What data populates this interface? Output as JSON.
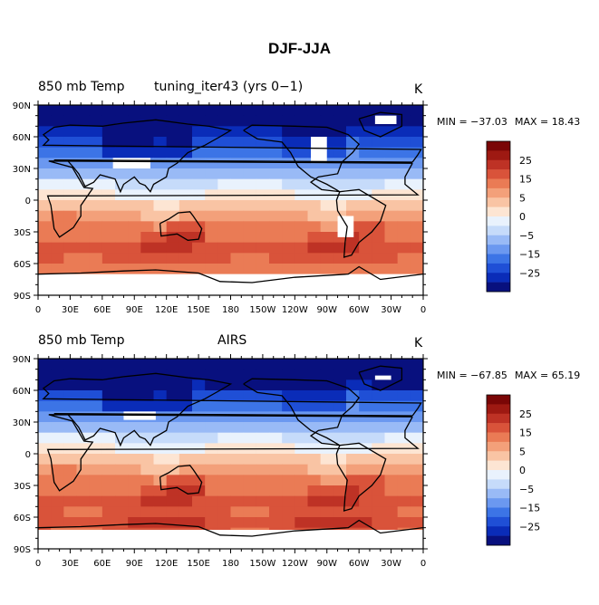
{
  "title": "DJF-JJA",
  "colors": {
    "palette": [
      "#08107e",
      "#0a2cb8",
      "#1f4fd6",
      "#3c74e6",
      "#6b98f0",
      "#99baf6",
      "#c6dbfa",
      "#e9f2fd",
      "#fde5d3",
      "#f9c4a4",
      "#f3a07a",
      "#ea7b55",
      "#d9533a",
      "#be3225",
      "#9e1912",
      "#7a0606"
    ],
    "land_mask": "#ffffff",
    "coastline": "#000000"
  },
  "panels": [
    {
      "left_label": "850 mb Temp",
      "center_label": "tuning_iter43 (yrs 0−1)",
      "units": "K",
      "min_text": "MIN = −37.03",
      "max_text": "MAX =   18.43"
    },
    {
      "left_label": "850 mb Temp",
      "center_label": "AIRS",
      "units": "K",
      "min_text": "MIN = −67.85",
      "max_text": "MAX =   65.19"
    }
  ],
  "chart_data": {
    "type": "heatmap",
    "field": "850 mb Temp DJF-JJA",
    "units": "K",
    "lat_ticks": [
      "90N",
      "60N",
      "30N",
      "0",
      "30S",
      "60S",
      "90S"
    ],
    "lon_ticks": [
      "0",
      "30E",
      "60E",
      "90E",
      "120E",
      "150E",
      "180",
      "150W",
      "120W",
      "90W",
      "60W",
      "30W",
      "0"
    ],
    "colorbar_labels": [
      "25",
      "15",
      "5",
      "0",
      "−5",
      "−15",
      "−25"
    ],
    "contour_levels": [
      -35,
      -30,
      -25,
      -20,
      -15,
      -10,
      -5,
      -2,
      2,
      5,
      10,
      15,
      20,
      25,
      30,
      35
    ]
  }
}
